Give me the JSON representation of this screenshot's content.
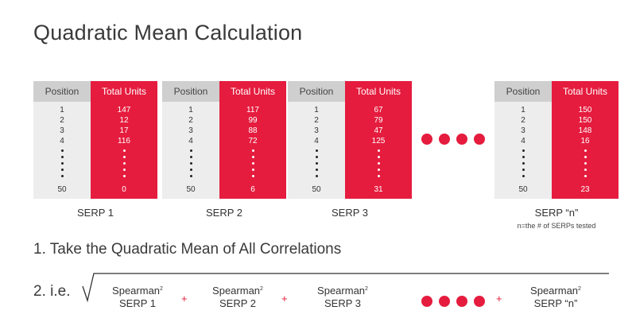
{
  "title": "Quadratic Mean Calculation",
  "table_headers": {
    "position": "Position",
    "total_units": "Total Units"
  },
  "serps": [
    {
      "label": "SERP 1",
      "positions": [
        "1",
        "2",
        "3",
        "4"
      ],
      "units": [
        "147",
        "12",
        "17",
        "116"
      ],
      "last_position": "50",
      "last_units": "0"
    },
    {
      "label": "SERP 2",
      "positions": [
        "1",
        "2",
        "3",
        "4"
      ],
      "units": [
        "117",
        "99",
        "88",
        "72"
      ],
      "last_position": "50",
      "last_units": "6"
    },
    {
      "label": "SERP 3",
      "positions": [
        "1",
        "2",
        "3",
        "4"
      ],
      "units": [
        "67",
        "79",
        "47",
        "125"
      ],
      "last_position": "50",
      "last_units": "31"
    },
    {
      "label": "SERP “n”",
      "note": "n=the # of SERPs tested",
      "positions": [
        "1",
        "2",
        "3",
        "4"
      ],
      "units": [
        "150",
        "150",
        "148",
        "16"
      ],
      "last_position": "50",
      "last_units": "23"
    }
  ],
  "step1": "1. Take the Quadratic Mean of All Correlations",
  "step2": "2. i.e.",
  "formula": {
    "term_word": "Spearman",
    "exponent": "2",
    "plus": "+",
    "terms": [
      "SERP 1",
      "SERP 2",
      "SERP 3",
      "SERP “n”"
    ]
  },
  "colors": {
    "accent": "#e51c3e",
    "header_gray": "#cfcfcf",
    "column_gray": "#ededed"
  }
}
